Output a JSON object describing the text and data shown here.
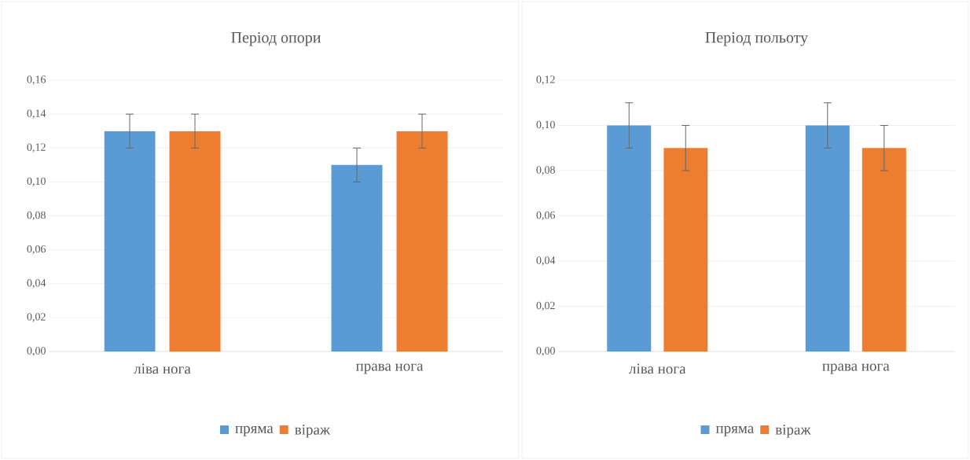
{
  "chart_data": [
    {
      "type": "bar",
      "title": "Період опори",
      "categories": [
        "ліва нога",
        "права нога"
      ],
      "series": [
        {
          "name": "пряма",
          "color": "#5b9bd5",
          "values": [
            0.13,
            0.11
          ],
          "errors": [
            0.01,
            0.01
          ]
        },
        {
          "name": "віраж",
          "color": "#ed7d31",
          "values": [
            0.13,
            0.13
          ],
          "errors": [
            0.01,
            0.01
          ]
        }
      ],
      "ylim": [
        0,
        0.16
      ],
      "yticks": [
        {
          "value": 0,
          "label": "0,00"
        },
        {
          "value": 0.02,
          "label": "0,02"
        },
        {
          "value": 0.04,
          "label": "0,04"
        },
        {
          "value": 0.06,
          "label": "0,06"
        },
        {
          "value": 0.08,
          "label": "0,08"
        },
        {
          "value": 0.1,
          "label": "0,10"
        },
        {
          "value": 0.12,
          "label": "0,12"
        },
        {
          "value": 0.14,
          "label": "0,14"
        },
        {
          "value": 0.16,
          "label": "0,16"
        }
      ],
      "grid": "y",
      "legend": "bottom"
    },
    {
      "type": "bar",
      "title": "Період польоту",
      "categories": [
        "ліва нога",
        "права нога"
      ],
      "series": [
        {
          "name": "пряма",
          "color": "#5b9bd5",
          "values": [
            0.1,
            0.1
          ],
          "errors": [
            0.01,
            0.01
          ]
        },
        {
          "name": "віраж",
          "color": "#ed7d31",
          "values": [
            0.09,
            0.09
          ],
          "errors": [
            0.01,
            0.01
          ]
        }
      ],
      "ylim": [
        0,
        0.12
      ],
      "yticks": [
        {
          "value": 0,
          "label": "0,00"
        },
        {
          "value": 0.02,
          "label": "0,02"
        },
        {
          "value": 0.04,
          "label": "0,04"
        },
        {
          "value": 0.06,
          "label": "0,06"
        },
        {
          "value": 0.08,
          "label": "0,08"
        },
        {
          "value": 0.1,
          "label": "0,10"
        },
        {
          "value": 0.12,
          "label": "0,12"
        }
      ],
      "grid": "y",
      "legend": "bottom"
    }
  ]
}
